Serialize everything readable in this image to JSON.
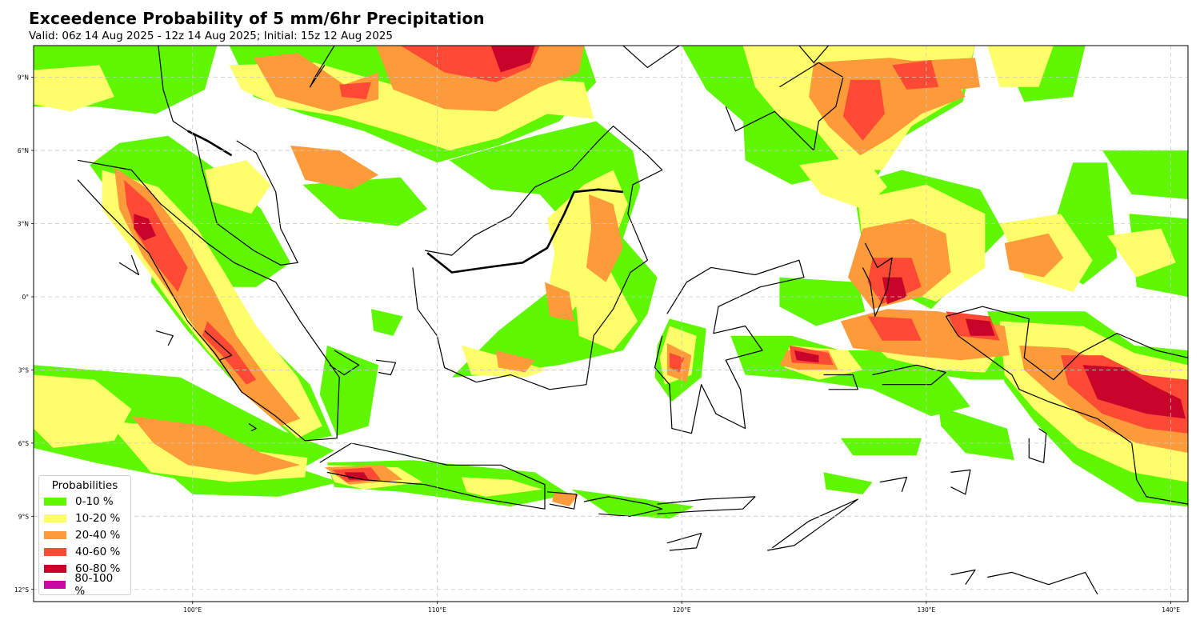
{
  "title": "Exceedence Probability of 5 mm/6hr Precipitation",
  "subtitle": "Valid: 06z 14 Aug 2025 - 12z 14 Aug 2025; Initial: 15z 12 Aug 2025",
  "axes": {
    "lon_ticks": [
      "100°E",
      "110°E",
      "120°E",
      "130°E",
      "140°E"
    ],
    "lat_ticks": [
      "9°N",
      "6°N",
      "3°N",
      "0°",
      "3°S",
      "6°S",
      "9°S",
      "12°S"
    ],
    "lon_range": [
      93.5,
      140.7
    ],
    "lat_range": [
      -12.5,
      10.3
    ],
    "gridlines": true
  },
  "legend": {
    "title": "Probabilities",
    "placement": "bottom-left",
    "items": [
      {
        "label": "0-10 %",
        "color": "#5ef700"
      },
      {
        "label": "10-20 %",
        "color": "#fefe6a"
      },
      {
        "label": "20-40 %",
        "color": "#fd9b3a"
      },
      {
        "label": "40-60 %",
        "color": "#fc4a34"
      },
      {
        "label": "60-80 %",
        "color": "#c9042a"
      },
      {
        "label": "80-100 %",
        "color": "#c80aa2"
      }
    ]
  }
}
